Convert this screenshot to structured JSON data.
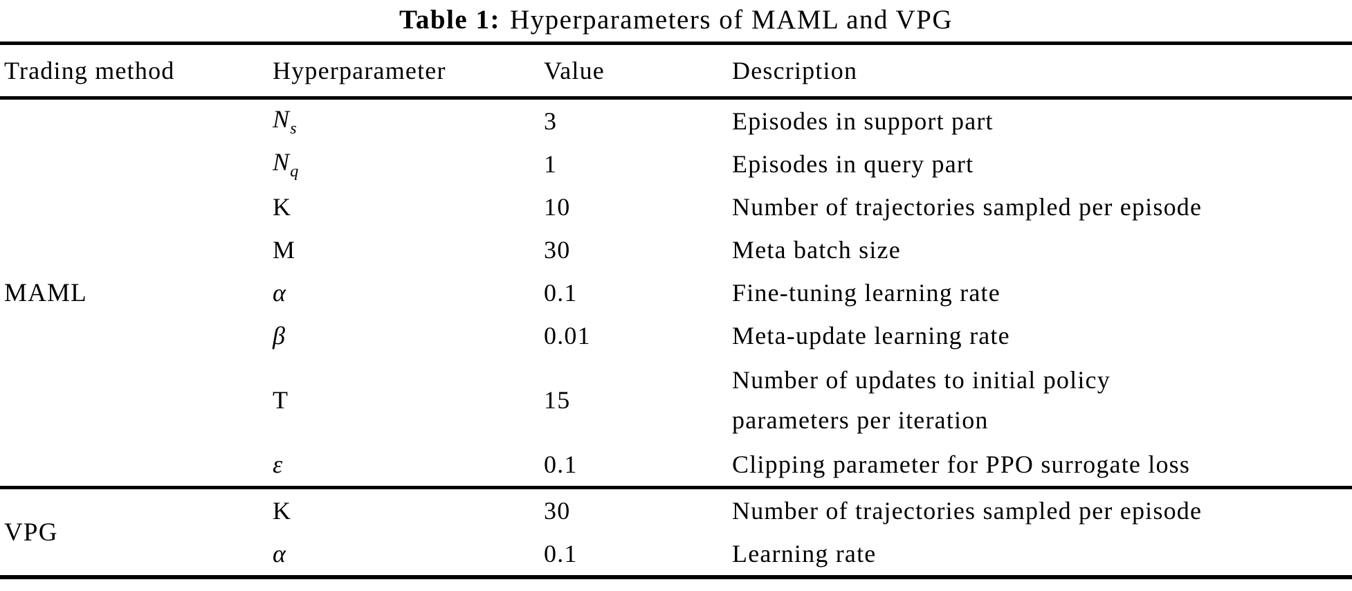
{
  "title": {
    "prefix": "Table 1:",
    "text": "Hyperparameters of MAML and VPG"
  },
  "colors": {
    "text": "#000000",
    "rule": "#000000",
    "background": "#ffffff"
  },
  "table": {
    "columns": [
      "Trading method",
      "Hyperparameter",
      "Value",
      "Description"
    ],
    "methods": [
      {
        "label": "MAML"
      },
      {
        "label": "VPG"
      }
    ],
    "rows": [
      {
        "param": "N",
        "param_sub": "s",
        "value": "3",
        "description": "Episodes in support part"
      },
      {
        "param": "N",
        "param_sub": "q",
        "value": "1",
        "description": "Episodes in query part"
      },
      {
        "param": "K",
        "value": "10",
        "description": "Number of trajectories sampled per episode"
      },
      {
        "param": "M",
        "value": "30",
        "description": "Meta batch size"
      },
      {
        "param": "α",
        "value": "0.1",
        "description": "Fine-tuning learning rate"
      },
      {
        "param": "β",
        "value": "0.01",
        "description": "Meta-update learning rate"
      },
      {
        "param": "T",
        "value": "15",
        "description": "Number of updates to initial policy",
        "description_line2": "parameters per iteration"
      },
      {
        "param": "ε",
        "value": "0.1",
        "description": "Clipping parameter for PPO surrogate loss"
      },
      {
        "param": "K",
        "value": "30",
        "description": "Number of trajectories sampled per episode"
      },
      {
        "param": "α",
        "value": "0.1",
        "description": "Learning rate"
      }
    ]
  }
}
